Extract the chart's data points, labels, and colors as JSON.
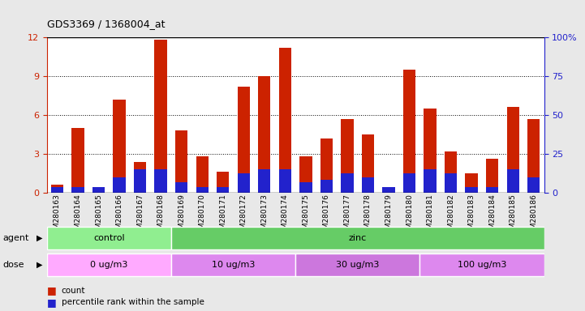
{
  "title": "GDS3369 / 1368004_at",
  "samples": [
    "GSM280163",
    "GSM280164",
    "GSM280165",
    "GSM280166",
    "GSM280167",
    "GSM280168",
    "GSM280169",
    "GSM280170",
    "GSM280171",
    "GSM280172",
    "GSM280173",
    "GSM280174",
    "GSM280175",
    "GSM280176",
    "GSM280177",
    "GSM280178",
    "GSM280179",
    "GSM280180",
    "GSM280181",
    "GSM280182",
    "GSM280183",
    "GSM280184",
    "GSM280185",
    "GSM280186"
  ],
  "count_values": [
    0.6,
    5.0,
    0.1,
    7.2,
    2.4,
    11.8,
    4.8,
    2.8,
    1.6,
    8.2,
    9.0,
    11.2,
    2.8,
    4.2,
    5.7,
    4.5,
    0.1,
    9.5,
    6.5,
    3.2,
    1.5,
    2.6,
    6.6,
    5.7
  ],
  "percentile_values": [
    0.45,
    0.45,
    0.45,
    1.2,
    1.8,
    1.8,
    0.8,
    0.45,
    0.45,
    1.5,
    1.8,
    1.8,
    0.8,
    1.0,
    1.5,
    1.2,
    0.45,
    1.5,
    1.8,
    1.5,
    0.45,
    0.45,
    1.8,
    1.2
  ],
  "bar_color": "#cc2200",
  "percentile_color": "#2222cc",
  "ylim_left": [
    0,
    12
  ],
  "ylim_right": [
    0,
    100
  ],
  "yticks_left": [
    0,
    3,
    6,
    9,
    12
  ],
  "yticks_right": [
    0,
    25,
    50,
    75,
    100
  ],
  "agent_groups": [
    {
      "label": "control",
      "start": 0,
      "end": 6,
      "color": "#90ee90"
    },
    {
      "label": "zinc",
      "start": 6,
      "end": 24,
      "color": "#66cc66"
    }
  ],
  "dose_groups": [
    {
      "label": "0 ug/m3",
      "start": 0,
      "end": 6,
      "color": "#ffaaff"
    },
    {
      "label": "10 ug/m3",
      "start": 6,
      "end": 12,
      "color": "#dd88ee"
    },
    {
      "label": "30 ug/m3",
      "start": 12,
      "end": 18,
      "color": "#cc77dd"
    },
    {
      "label": "100 ug/m3",
      "start": 18,
      "end": 24,
      "color": "#dd88ee"
    }
  ],
  "legend_count_color": "#cc2200",
  "legend_percentile_color": "#2222cc",
  "background_color": "#e8e8e8",
  "plot_bg_color": "#ffffff",
  "grid_color": "#000000",
  "left_axis_color": "#cc2200",
  "right_axis_color": "#2222cc"
}
